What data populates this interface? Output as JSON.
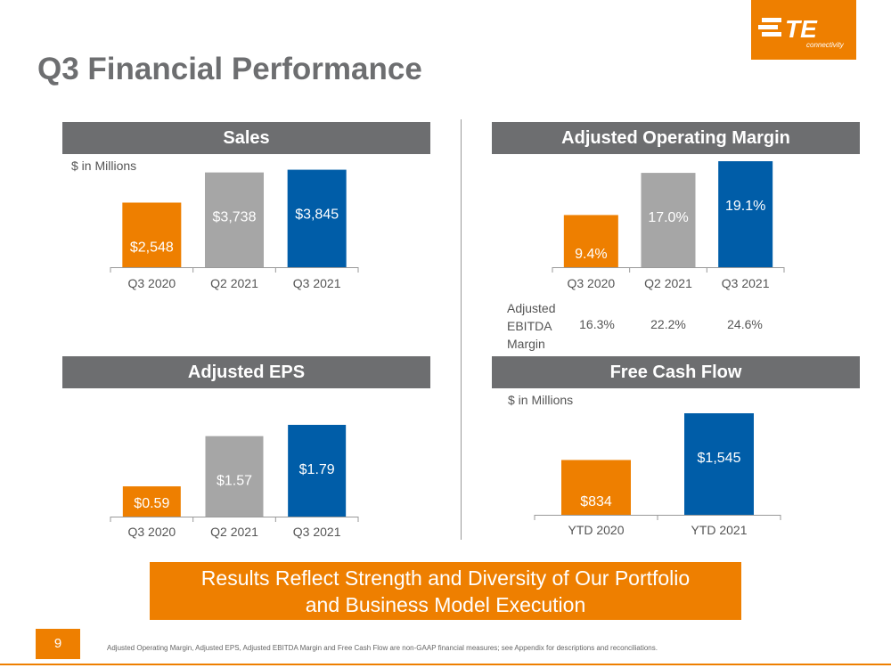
{
  "colors": {
    "orange": "#ee7f00",
    "gray": "#a6a6a6",
    "blue": "#005da8",
    "header": "#6d6e70",
    "text": "#6d6e70"
  },
  "logo": {
    "mark": "TE",
    "sub": "connectivity"
  },
  "title": "Q3 Financial Performance",
  "chart_data": [
    {
      "type": "bar",
      "title": "Sales",
      "subtitle": "$ in Millions",
      "categories": [
        "Q3 2020",
        "Q2 2021",
        "Q3 2021"
      ],
      "values": [
        2548,
        3738,
        3845
      ],
      "labels": [
        "$2,548",
        "$3,738",
        "$3,845"
      ],
      "colors": [
        "#ee7f00",
        "#a6a6a6",
        "#005da8"
      ],
      "ylim": [
        0,
        3900
      ]
    },
    {
      "type": "bar",
      "title": "Adjusted Operating Margin",
      "categories": [
        "Q3 2020",
        "Q2 2021",
        "Q3 2021"
      ],
      "values": [
        9.4,
        17.0,
        19.1
      ],
      "labels": [
        "9.4%",
        "17.0%",
        "19.1%"
      ],
      "colors": [
        "#ee7f00",
        "#a6a6a6",
        "#005da8"
      ],
      "ylim": [
        0,
        19.1
      ]
    },
    {
      "type": "bar",
      "title": "Adjusted EPS",
      "categories": [
        "Q3 2020",
        "Q2 2021",
        "Q3 2021"
      ],
      "values": [
        0.59,
        1.57,
        1.79
      ],
      "labels": [
        "$0.59",
        "$1.57",
        "$1.79"
      ],
      "colors": [
        "#ee7f00",
        "#a6a6a6",
        "#005da8"
      ],
      "ylim": [
        0,
        1.79
      ]
    },
    {
      "type": "bar",
      "title": "Free Cash Flow",
      "subtitle": "$ in Millions",
      "categories": [
        "YTD 2020",
        "YTD 2021"
      ],
      "values": [
        834,
        1545
      ],
      "labels": [
        "$834",
        "$1,545"
      ],
      "colors": [
        "#ee7f00",
        "#005da8"
      ],
      "ylim": [
        0,
        1545
      ]
    }
  ],
  "ebitda": {
    "label_lines": [
      "Adjusted",
      "EBITDA",
      "Margin"
    ],
    "values": [
      "16.3%",
      "22.2%",
      "24.6%"
    ]
  },
  "banner": {
    "line1": "Results Reflect Strength and Diversity of Our Portfolio",
    "line2": "and Business Model Execution"
  },
  "footer": {
    "page": "9",
    "note": "Adjusted Operating Margin, Adjusted EPS, Adjusted EBITDA Margin and Free Cash Flow are non-GAAP financial measures; see Appendix for descriptions and reconciliations."
  }
}
